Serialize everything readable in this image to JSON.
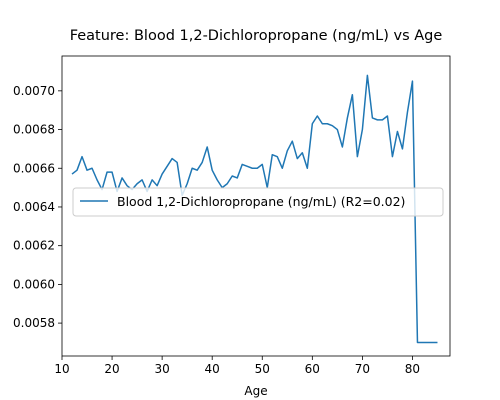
{
  "chart_data": {
    "type": "line",
    "title": "Feature: Blood 1,2-Dichloropropane (ng/mL) vs Age",
    "xlabel": "Age",
    "ylabel": "",
    "xlim": [
      10,
      87.5
    ],
    "ylim": [
      0.00563,
      0.00718
    ],
    "xticks": [
      10,
      20,
      30,
      40,
      50,
      60,
      70,
      80
    ],
    "yticks": [
      0.0058,
      0.006,
      0.0062,
      0.0064,
      0.0066,
      0.0068,
      0.007
    ],
    "ytick_labels": [
      "0.0058",
      "0.0060",
      "0.0062",
      "0.0064",
      "0.0066",
      "0.0068",
      "0.0070"
    ],
    "grid": false,
    "legend_position": "center-left",
    "series": [
      {
        "name": "Blood 1,2-Dichloropropane (ng/mL) (R2=0.02)",
        "color": "#1f77b4",
        "x": [
          12,
          13,
          14,
          15,
          16,
          17,
          18,
          19,
          20,
          21,
          22,
          23,
          24,
          25,
          26,
          27,
          28,
          29,
          30,
          31,
          32,
          33,
          34,
          35,
          36,
          37,
          38,
          39,
          40,
          41,
          42,
          43,
          44,
          45,
          46,
          47,
          48,
          49,
          50,
          51,
          52,
          53,
          54,
          55,
          56,
          57,
          58,
          59,
          60,
          61,
          62,
          63,
          64,
          65,
          66,
          67,
          68,
          69,
          70,
          71,
          72,
          73,
          74,
          75,
          76,
          77,
          78,
          79,
          80,
          81,
          82,
          83,
          84,
          85
        ],
        "y": [
          0.00657,
          0.00659,
          0.00666,
          0.00659,
          0.0066,
          0.00654,
          0.00649,
          0.00658,
          0.00658,
          0.00648,
          0.00655,
          0.00651,
          0.00649,
          0.00652,
          0.00654,
          0.00648,
          0.00654,
          0.00651,
          0.00657,
          0.00661,
          0.00665,
          0.00663,
          0.00646,
          0.00652,
          0.0066,
          0.00659,
          0.00663,
          0.00671,
          0.00659,
          0.00654,
          0.0065,
          0.00652,
          0.00656,
          0.00655,
          0.00662,
          0.00661,
          0.0066,
          0.0066,
          0.00662,
          0.0065,
          0.00667,
          0.00666,
          0.0066,
          0.00669,
          0.00674,
          0.00665,
          0.00668,
          0.0066,
          0.00683,
          0.00687,
          0.00683,
          0.00683,
          0.00682,
          0.0068,
          0.00671,
          0.00686,
          0.00698,
          0.00666,
          0.0068,
          0.00708,
          0.00686,
          0.00685,
          0.00685,
          0.00687,
          0.00666,
          0.00679,
          0.0067,
          0.00689,
          0.00705,
          0.0057,
          0.0057,
          0.0057,
          0.0057,
          0.0057
        ]
      }
    ]
  }
}
